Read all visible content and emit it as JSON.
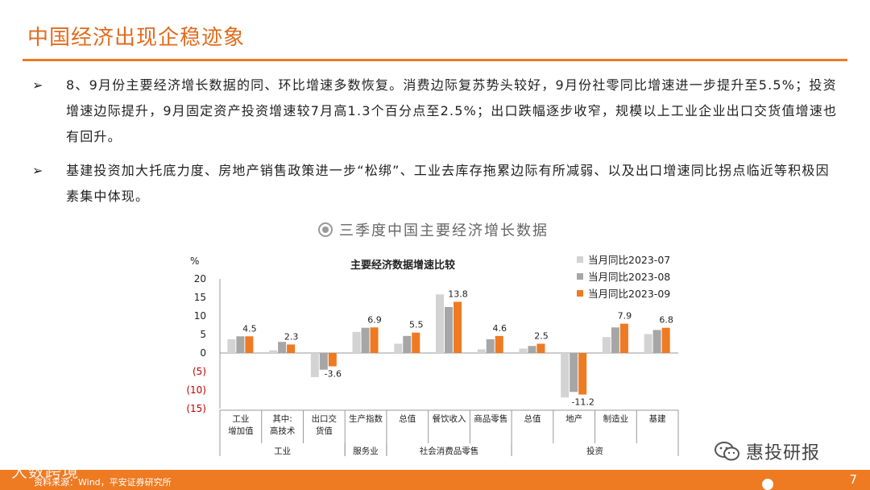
{
  "slide": {
    "title": "中国经济出现企稳迹象",
    "page_number": "7"
  },
  "bullets": [
    {
      "marker": "➢",
      "text": "8、9月份主要经济增长数据的同、环比增速多数恢复。消费边际复苏势头较好，9月份社零同比增速进一步提升至5.5%；投资增速边际提升，9月固定资产投资增速较7月高1.3个百分点至2.5%；出口跌幅逐步收窄，规模以上工业企业出口交货值增速也有回升。"
    },
    {
      "marker": "➢",
      "text": "基建投资加大托底力度、房地产销售政策进一步“松绑”、工业去库存拖累边际有所减弱、以及出口增速同比拐点临近等积极因素集中体现。"
    }
  ],
  "chart_heading": "三季度中国主要经济增长数据",
  "footer": {
    "logo": "大数跨境",
    "source": "资料来源：Wind，平安证券研究所",
    "watermark": "惠投研报"
  },
  "colors": {
    "accent": "#ee7a22",
    "series_1": "#d3d3d3",
    "series_2": "#a6a6a6",
    "series_3": "#ee7a22",
    "negative_tick": "#c00000"
  },
  "chart_data": {
    "type": "bar",
    "title": "主要经济数据增速比较",
    "ylabel": "%",
    "ylim": [
      -15,
      20
    ],
    "yticks": [
      -15,
      -10,
      -5,
      0,
      5,
      10,
      15,
      20
    ],
    "ytick_labels": [
      "(15)",
      "(10)",
      "(5)",
      "0",
      "5",
      "10",
      "15",
      "20"
    ],
    "legend_position": "top-right",
    "categories": [
      "工业\n增加值",
      "其中:\n高技术",
      "出口交\n货值",
      "生产指数",
      "总值",
      "餐饮收入",
      "商品零售",
      "总值",
      "地产",
      "制造业",
      "基建"
    ],
    "groups": [
      {
        "label": "工业",
        "span": [
          0,
          2
        ]
      },
      {
        "label": "服务业",
        "span": [
          3,
          3
        ]
      },
      {
        "label": "社会消费品零售",
        "span": [
          4,
          6
        ]
      },
      {
        "label": "投资",
        "span": [
          7,
          10
        ]
      }
    ],
    "series": [
      {
        "name": "当月同比2023-07",
        "values": [
          3.7,
          0.7,
          -6.5,
          5.7,
          2.5,
          15.8,
          1.0,
          1.2,
          -12.0,
          4.3,
          5.1
        ]
      },
      {
        "name": "当月同比2023-08",
        "values": [
          4.5,
          3.0,
          -4.5,
          6.8,
          4.6,
          12.4,
          3.7,
          1.9,
          -10.5,
          6.9,
          6.2
        ]
      },
      {
        "name": "当月同比2023-09",
        "values": [
          4.5,
          2.3,
          -3.6,
          6.9,
          5.5,
          13.8,
          4.6,
          2.5,
          -11.2,
          7.9,
          6.8
        ]
      }
    ],
    "data_labels": [
      {
        "category_index": 0,
        "text": "4.5"
      },
      {
        "category_index": 1,
        "text": "2.3"
      },
      {
        "category_index": 2,
        "text": "-3.6"
      },
      {
        "category_index": 3,
        "text": "6.9"
      },
      {
        "category_index": 4,
        "text": "5.5"
      },
      {
        "category_index": 5,
        "text": "13.8"
      },
      {
        "category_index": 6,
        "text": "4.6"
      },
      {
        "category_index": 7,
        "text": "2.5"
      },
      {
        "category_index": 8,
        "text": "-11.2"
      },
      {
        "category_index": 9,
        "text": "7.9"
      },
      {
        "category_index": 10,
        "text": "6.8"
      }
    ]
  }
}
